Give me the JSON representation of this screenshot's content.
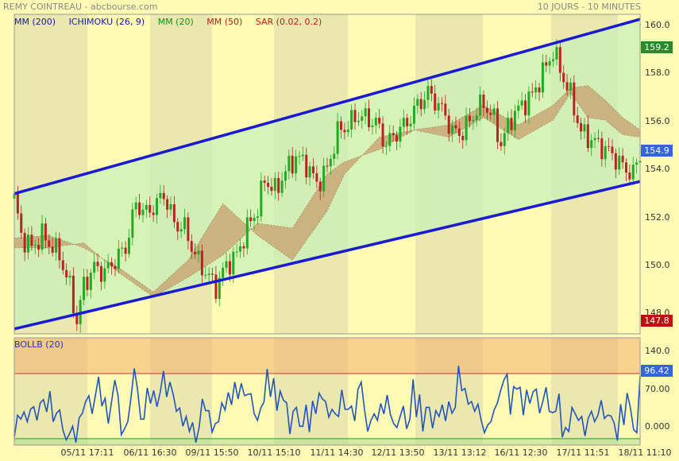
{
  "header": {
    "title": "REMY COINTREAU - abcbourse.com",
    "period": "10 JOURS - 10 MINUTES"
  },
  "legend": [
    {
      "label": "MM (200)",
      "color": "#1a1aa0"
    },
    {
      "label": "ICHIMOKU (26, 9)",
      "color": "#1a1aa0"
    },
    {
      "label": "MM (20)",
      "color": "#1a8a1a"
    },
    {
      "label": "MM (50)",
      "color": "#c01a1a"
    },
    {
      "label": "SAR (0.02, 0.2)",
      "color": "#c01a1a"
    }
  ],
  "indicator_label": "BOLLB (20)",
  "colors": {
    "up_candle": "#22aa22",
    "down_candle": "#bb2222",
    "channel": "#1a1ad0",
    "cloud": "#c8a070",
    "band_line": "#2255bb",
    "last_price_tag": "#3366dd",
    "high_tag": "#2a8a2a",
    "low_tag": "#bb1111"
  },
  "tags": {
    "high": "159.2",
    "last": "154.9",
    "low": "147.8",
    "indicator_last": "96.42"
  },
  "chart_data": [
    {
      "type": "candlestick",
      "title": "REMY COINTREAU",
      "ylim": [
        147.5,
        160.5
      ],
      "y_ticks": [
        "160.0",
        "158.0",
        "156.0",
        "154.0",
        "152.0",
        "150.0",
        "148.0"
      ],
      "x_ticks": [
        "05/11 17:11",
        "06/11 16:30",
        "09/11 15:50",
        "10/11 15:10",
        "11/11 14:30",
        "12/11 13:50",
        "13/11 13:12",
        "16/11 12:30",
        "17/11 11:51",
        "18/11 11:10"
      ],
      "close_path": [
        [
          0,
          153.0
        ],
        [
          2,
          151.5
        ],
        [
          5,
          151.0
        ],
        [
          8,
          151.5
        ],
        [
          10,
          151.2
        ],
        [
          13,
          150.7
        ],
        [
          16,
          149.4
        ],
        [
          18,
          148.0
        ],
        [
          20,
          149.5
        ],
        [
          23,
          150.2
        ],
        [
          26,
          150.0
        ],
        [
          29,
          150.5
        ],
        [
          32,
          151.0
        ],
        [
          35,
          152.8
        ],
        [
          38,
          152.4
        ],
        [
          41,
          152.8
        ],
        [
          43,
          153.2
        ],
        [
          46,
          152.0
        ],
        [
          49,
          151.8
        ],
        [
          52,
          150.7
        ],
        [
          55,
          150.0
        ],
        [
          58,
          149.4
        ],
        [
          61,
          150.3
        ],
        [
          64,
          150.7
        ],
        [
          67,
          151.8
        ],
        [
          70,
          152.6
        ],
        [
          72,
          153.8
        ],
        [
          75,
          153.3
        ],
        [
          78,
          154.1
        ],
        [
          81,
          154.7
        ],
        [
          84,
          154.4
        ],
        [
          87,
          153.6
        ],
        [
          90,
          154.2
        ],
        [
          93,
          155.7
        ],
        [
          96,
          156.0
        ],
        [
          99,
          156.4
        ],
        [
          102,
          156.2
        ],
        [
          104,
          156.1
        ],
        [
          107,
          155.2
        ],
        [
          110,
          155.7
        ],
        [
          113,
          156.1
        ],
        [
          116,
          156.8
        ],
        [
          119,
          157.3
        ],
        [
          121,
          157.0
        ],
        [
          124,
          156.4
        ],
        [
          126,
          155.7
        ],
        [
          129,
          155.7
        ],
        [
          132,
          156.4
        ],
        [
          135,
          156.9
        ],
        [
          138,
          156.2
        ],
        [
          140,
          155.2
        ],
        [
          143,
          156.3
        ],
        [
          146,
          156.8
        ],
        [
          149,
          157.2
        ],
        [
          152,
          158.1
        ],
        [
          155,
          159.0
        ],
        [
          158,
          157.9
        ],
        [
          160,
          157.2
        ],
        [
          163,
          155.7
        ],
        [
          166,
          155.4
        ],
        [
          169,
          155.1
        ],
        [
          172,
          154.8
        ],
        [
          175,
          154.3
        ],
        [
          178,
          154.0
        ],
        [
          180,
          154.8
        ]
      ],
      "channel_lower": [
        [
          0,
          147.7
        ],
        [
          180,
          153.7
        ]
      ],
      "channel_upper": [
        [
          0,
          153.2
        ],
        [
          180,
          160.3
        ]
      ],
      "cloud_a": [
        [
          0,
          151.4
        ],
        [
          10,
          151.5
        ],
        [
          20,
          151.0
        ],
        [
          30,
          150.2
        ],
        [
          40,
          149.2
        ],
        [
          50,
          150.5
        ],
        [
          60,
          152.8
        ],
        [
          70,
          151.5
        ],
        [
          80,
          150.5
        ],
        [
          90,
          152.5
        ],
        [
          95,
          154.0
        ],
        [
          105,
          155.5
        ],
        [
          115,
          155.8
        ],
        [
          125,
          156.0
        ],
        [
          135,
          156.8
        ],
        [
          145,
          156.0
        ],
        [
          155,
          156.8
        ],
        [
          160,
          157.5
        ],
        [
          165,
          157.6
        ],
        [
          170,
          157.0
        ],
        [
          175,
          156.3
        ],
        [
          180,
          155.8
        ]
      ],
      "cloud_b": [
        [
          0,
          151.0
        ],
        [
          10,
          151.0
        ],
        [
          20,
          151.2
        ],
        [
          30,
          150.0
        ],
        [
          40,
          149.0
        ],
        [
          50,
          149.8
        ],
        [
          60,
          150.7
        ],
        [
          70,
          152.0
        ],
        [
          80,
          151.8
        ],
        [
          90,
          154.0
        ],
        [
          95,
          154.5
        ],
        [
          105,
          155.0
        ],
        [
          115,
          155.8
        ],
        [
          125,
          155.5
        ],
        [
          135,
          156.3
        ],
        [
          145,
          155.4
        ],
        [
          155,
          156.2
        ],
        [
          160,
          157.3
        ],
        [
          165,
          156.3
        ],
        [
          170,
          156.2
        ],
        [
          175,
          155.6
        ],
        [
          180,
          155.5
        ]
      ]
    },
    {
      "type": "line",
      "title": "BOLLB (20)",
      "ylim": [
        -10,
        155
      ],
      "y_ticks": [
        "140.0",
        "70.00",
        "0.000"
      ],
      "thresholds": [
        100,
        0
      ],
      "values": [
        2,
        36,
        30,
        41,
        26,
        45,
        49,
        28,
        55,
        60,
        41,
        73,
        26,
        39,
        44,
        13,
        -2,
        7,
        19,
        -6,
        32,
        39,
        57,
        66,
        38,
        66,
        95,
        50,
        62,
        23,
        57,
        90,
        66,
        6,
        15,
        26,
        63,
        108,
        76,
        30,
        30,
        78,
        54,
        74,
        49,
        71,
        104,
        64,
        87,
        68,
        42,
        47,
        19,
        34,
        11,
        25,
        -6,
        17,
        61,
        43,
        43,
        10,
        23,
        26,
        55,
        44,
        71,
        52,
        87,
        61,
        85,
        66,
        68,
        69,
        38,
        28,
        47,
        56,
        107,
        64,
        93,
        43,
        73,
        59,
        55,
        7,
        42,
        48,
        19,
        19,
        52,
        10,
        58,
        38,
        70,
        61,
        57,
        33,
        45,
        38,
        34,
        75,
        45,
        45,
        50,
        27,
        76,
        87,
        45,
        11,
        28,
        38,
        28,
        54,
        38,
        67,
        37,
        23,
        17,
        34,
        50,
        15,
        30,
        91,
        33,
        68,
        11,
        48,
        48,
        16,
        43,
        34,
        52,
        27,
        57,
        39,
        48,
        112,
        74,
        77,
        53,
        57,
        42,
        53,
        28,
        9,
        21,
        26,
        44,
        55,
        74,
        90,
        99,
        37,
        80,
        76,
        79,
        36,
        75,
        54,
        72,
        76,
        39,
        57,
        79,
        42,
        40,
        42,
        69,
        2,
        17,
        11,
        48,
        38,
        28,
        34,
        4,
        31,
        42,
        26,
        36,
        59,
        31,
        36,
        35,
        24,
        -3,
        53,
        21,
        70,
        48,
        14,
        9,
        96
      ]
    }
  ]
}
